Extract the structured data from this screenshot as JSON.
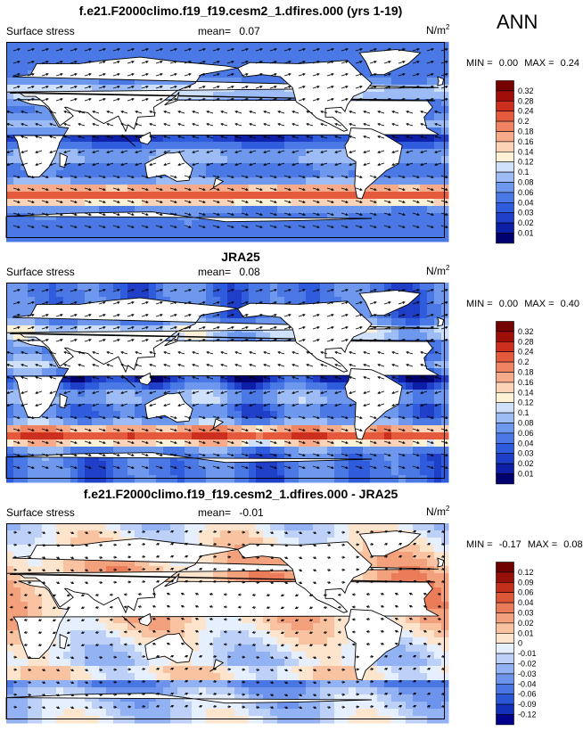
{
  "season": "ANN",
  "panels": [
    {
      "title": "f.e21.F2000climo.f19_f19.cesm2_1.dfires.000 (yrs 1-19)",
      "left_label": "Surface stress",
      "mean_label": "mean=",
      "mean_value": "0.07",
      "units": "N/m",
      "units_sup": "2",
      "min_label": "MIN =",
      "min_value": "0.00",
      "max_label": "MAX =",
      "max_value": "0.24",
      "colorbar": [
        "0.32",
        "0.28",
        "0.24",
        "0.2",
        "0.18",
        "0.16",
        "0.14",
        "0.12",
        "0.1",
        "0.08",
        "0.06",
        "0.04",
        "0.03",
        "0.02",
        "0.01"
      ],
      "colors": [
        "#00006e",
        "#0d1fa6",
        "#1f3fc8",
        "#2f5cdc",
        "#4a78e4",
        "#6e98ee",
        "#9dbcf5",
        "#cfe0fb",
        "#fff1d6",
        "#fcd3b6",
        "#f7ab8b",
        "#f08362",
        "#e55a3c",
        "#cc2f1e",
        "#a00e0a",
        "#750000"
      ]
    },
    {
      "title": "JRA25",
      "left_label": "Surface stress",
      "mean_label": "mean=",
      "mean_value": "0.08",
      "units": "N/m",
      "units_sup": "2",
      "min_label": "MIN =",
      "min_value": "0.00",
      "max_label": "MAX =",
      "max_value": "0.40",
      "colorbar": [
        "0.32",
        "0.28",
        "0.24",
        "0.2",
        "0.18",
        "0.16",
        "0.14",
        "0.12",
        "0.1",
        "0.08",
        "0.06",
        "0.04",
        "0.03",
        "0.02",
        "0.01"
      ],
      "colors": [
        "#00006e",
        "#0d1fa6",
        "#1f3fc8",
        "#2f5cdc",
        "#4a78e4",
        "#6e98ee",
        "#9dbcf5",
        "#cfe0fb",
        "#fff1d6",
        "#fcd3b6",
        "#f7ab8b",
        "#f08362",
        "#e55a3c",
        "#cc2f1e",
        "#a00e0a",
        "#750000"
      ]
    },
    {
      "title": "f.e21.F2000climo.f19_f19.cesm2_1.dfires.000 - JRA25",
      "left_label": "Surface stress",
      "mean_label": "mean=",
      "mean_value": "-0.01",
      "units": "N/m",
      "units_sup": "2",
      "min_label": "MIN =",
      "min_value": "-0.17",
      "max_label": "MAX =",
      "max_value": "0.08",
      "colorbar": [
        "0.12",
        "0.09",
        "0.06",
        "0.04",
        "0.03",
        "0.02",
        "0.01",
        "0",
        "-0.01",
        "-0.02",
        "-0.03",
        "-0.04",
        "-0.06",
        "-0.09",
        "-0.12"
      ],
      "colors": [
        "#00008c",
        "#1230b8",
        "#2b56d6",
        "#4a76e3",
        "#6d93ec",
        "#93b2f3",
        "#bcd0f8",
        "#e6effd",
        "#fde4cc",
        "#f9c3a1",
        "#f3a07c",
        "#eb7c5a",
        "#dc5637",
        "#c2301c",
        "#98100a",
        "#6e0000"
      ]
    }
  ],
  "chart_data": [
    {
      "type": "heatmap",
      "title": "f.e21.F2000climo.f19_f19.cesm2_1.dfires.000 (yrs 1-19)",
      "variable": "Surface stress",
      "units": "N/m2",
      "mean": 0.07,
      "min": 0.0,
      "max": 0.24,
      "levels": [
        0.01,
        0.02,
        0.03,
        0.04,
        0.06,
        0.08,
        0.1,
        0.12,
        0.14,
        0.16,
        0.18,
        0.2,
        0.24,
        0.28,
        0.32
      ],
      "overlay": "wind stress vectors"
    },
    {
      "type": "heatmap",
      "title": "JRA25",
      "variable": "Surface stress",
      "units": "N/m2",
      "mean": 0.08,
      "min": 0.0,
      "max": 0.4,
      "levels": [
        0.01,
        0.02,
        0.03,
        0.04,
        0.06,
        0.08,
        0.1,
        0.12,
        0.14,
        0.16,
        0.18,
        0.2,
        0.24,
        0.28,
        0.32
      ],
      "overlay": "wind stress vectors"
    },
    {
      "type": "heatmap",
      "title": "f.e21.F2000climo.f19_f19.cesm2_1.dfires.000 - JRA25",
      "variable": "Surface stress",
      "units": "N/m2",
      "mean": -0.01,
      "min": -0.17,
      "max": 0.08,
      "levels": [
        -0.12,
        -0.09,
        -0.06,
        -0.04,
        -0.03,
        -0.02,
        -0.01,
        0,
        0.01,
        0.02,
        0.03,
        0.04,
        0.06,
        0.09,
        0.12
      ],
      "overlay": "wind stress difference vectors"
    }
  ]
}
